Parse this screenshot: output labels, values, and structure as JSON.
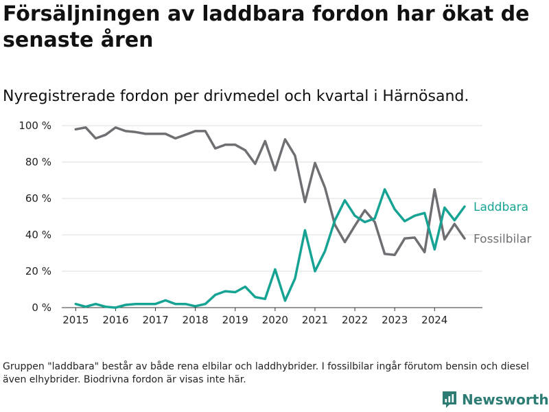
{
  "title": "Försäljningen av laddbara fordon har ökat de senaste åren",
  "subtitle": "Nyregistrerade fordon per drivmedel och kvartal i Härnösand.",
  "note": "Gruppen \"laddbara\" består av både rena elbilar och laddhybrider. I fossilbilar ingår förutom bensin och diesel även elhybrider. Biodrivna fordon är visas inte här.",
  "brand": {
    "name": "Newsworthy",
    "icon": "newsworthy-logo-icon"
  },
  "colors": {
    "laddbara": "#16a394",
    "fossil": "#6e6e73",
    "brand": "#2c7c74"
  },
  "chart_data": {
    "type": "line",
    "title": "Nyregistrerade fordon per drivmedel och kvartal i Härnösand.",
    "xlabel": "",
    "ylabel": "",
    "x": [
      2015.0,
      2015.25,
      2015.5,
      2015.75,
      2016.0,
      2016.25,
      2016.5,
      2016.75,
      2017.0,
      2017.25,
      2017.5,
      2017.75,
      2018.0,
      2018.25,
      2018.5,
      2018.75,
      2019.0,
      2019.25,
      2019.5,
      2019.75,
      2020.0,
      2020.25,
      2020.5,
      2020.75,
      2021.0,
      2021.25,
      2021.5,
      2021.75,
      2022.0,
      2022.25,
      2022.5,
      2022.75,
      2023.0,
      2023.25,
      2023.5,
      2023.75,
      2024.0,
      2024.25,
      2024.5,
      2024.75
    ],
    "xlim": [
      2014.65,
      2025.2
    ],
    "ylim": [
      0,
      100
    ],
    "xticks": [
      2015,
      2016,
      2017,
      2018,
      2019,
      2020,
      2021,
      2022,
      2023,
      2024
    ],
    "xtick_labels": [
      "2015",
      "2016",
      "2017",
      "2018",
      "2019",
      "2020",
      "2021",
      "2022",
      "2023",
      "2024"
    ],
    "yticks": [
      0,
      20,
      40,
      60,
      80,
      100
    ],
    "ytick_labels": [
      "0 %",
      "20 %",
      "40 %",
      "60 %",
      "80 %",
      "100 %"
    ],
    "grid": true,
    "series": [
      {
        "name": "Laddbara",
        "key": "laddbara",
        "values": [
          2,
          0.5,
          2,
          0.5,
          0,
          1.5,
          2,
          2,
          2,
          4,
          2,
          2,
          0.8,
          2,
          7,
          9,
          8.5,
          11.5,
          5.8,
          4.8,
          21,
          3.8,
          16,
          42.5,
          20,
          31,
          48,
          59,
          50.5,
          47,
          49,
          65,
          54,
          47.5,
          50.5,
          52,
          32,
          55,
          48,
          55.5
        ]
      },
      {
        "name": "Fossilbilar",
        "key": "fossil",
        "values": [
          98,
          99,
          93,
          95,
          99,
          97,
          96.5,
          95.5,
          95.5,
          95.5,
          93,
          95,
          97,
          97,
          87.5,
          89.5,
          89.5,
          86.5,
          79,
          91.5,
          75.5,
          92.5,
          83.5,
          58,
          79.5,
          66,
          45.5,
          36,
          45,
          53.5,
          47,
          29.5,
          29,
          38,
          38.5,
          30.5,
          65,
          37.5,
          46,
          38
        ]
      }
    ]
  }
}
